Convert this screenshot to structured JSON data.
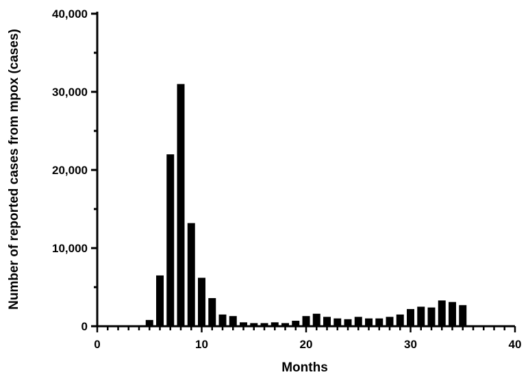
{
  "chart_data": {
    "type": "bar",
    "xlabel": "Months",
    "ylabel": "Number of reported cases from mpox (cases)",
    "xlim": [
      0,
      40
    ],
    "ylim": [
      0,
      40000
    ],
    "x_ticks": [
      "0",
      "10",
      "20",
      "30",
      "40"
    ],
    "y_ticks": [
      "0",
      "10,000",
      "20,000",
      "30,000",
      "40,000"
    ],
    "grid": false,
    "bar_color": "#000000",
    "x": [
      1,
      2,
      3,
      4,
      5,
      6,
      7,
      8,
      9,
      10,
      11,
      12,
      13,
      14,
      15,
      16,
      17,
      18,
      19,
      20,
      21,
      22,
      23,
      24,
      25,
      26,
      27,
      28,
      29,
      30,
      31,
      32,
      33,
      34,
      35
    ],
    "values": [
      100,
      100,
      100,
      100,
      800,
      6500,
      22000,
      31000,
      13200,
      6200,
      3600,
      1500,
      1300,
      500,
      400,
      400,
      500,
      400,
      700,
      1300,
      1600,
      1200,
      1000,
      900,
      1200,
      1000,
      1000,
      1200,
      1500,
      2200,
      2500,
      2400,
      3300,
      3100,
      2700
    ]
  }
}
